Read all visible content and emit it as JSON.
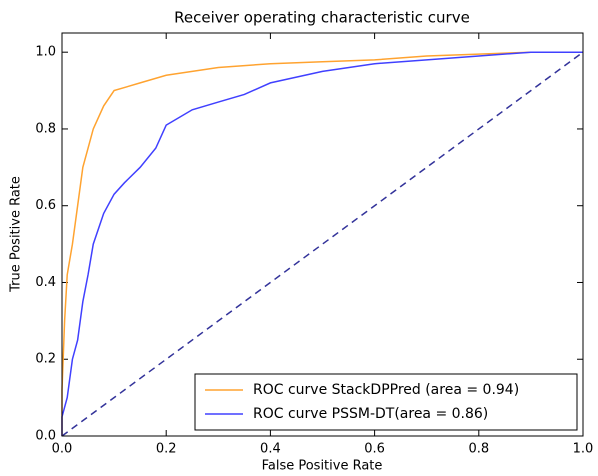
{
  "chart_data": {
    "type": "line",
    "title": "Receiver operating characteristic curve",
    "x_label": "False Positive Rate",
    "y_label": "True Positive Rate",
    "xlim": [
      0,
      1
    ],
    "ylim": [
      0,
      1.05
    ],
    "xticks": [
      {
        "value": 0,
        "label": "0.0"
      },
      {
        "value": 0.2,
        "label": "0.2"
      },
      {
        "value": 0.4,
        "label": "0.4"
      },
      {
        "value": 0.6,
        "label": "0.6"
      },
      {
        "value": 0.8,
        "label": "0.8"
      },
      {
        "value": 1,
        "label": "1.0"
      }
    ],
    "yticks": [
      {
        "value": 0,
        "label": "0.0"
      },
      {
        "value": 0.2,
        "label": "0.2"
      },
      {
        "value": 0.4,
        "label": "0.4"
      },
      {
        "value": 0.6,
        "label": "0.6"
      },
      {
        "value": 0.8,
        "label": "0.8"
      },
      {
        "value": 1,
        "label": "1.0"
      }
    ],
    "legend": "lower right",
    "series": [
      {
        "name": "ROC curve StackDPPred (area = 0.94)",
        "color": "#ffa330",
        "x": [
          0,
          0,
          0.005,
          0.01,
          0.02,
          0.03,
          0.04,
          0.05,
          0.06,
          0.08,
          0.1,
          0.15,
          0.2,
          0.3,
          0.4,
          0.5,
          0.6,
          0.7,
          0.8,
          0.9,
          1.0
        ],
        "values": [
          0,
          0.12,
          0.3,
          0.42,
          0.5,
          0.6,
          0.7,
          0.75,
          0.8,
          0.86,
          0.9,
          0.92,
          0.94,
          0.96,
          0.97,
          0.975,
          0.98,
          0.99,
          0.995,
          1.0,
          1.0
        ]
      },
      {
        "name": "ROC curve PSSM-DT(area = 0.86)",
        "color": "#4040ff",
        "x": [
          0,
          0,
          0.01,
          0.02,
          0.03,
          0.04,
          0.05,
          0.06,
          0.08,
          0.1,
          0.12,
          0.15,
          0.18,
          0.2,
          0.25,
          0.3,
          0.35,
          0.4,
          0.5,
          0.6,
          0.7,
          0.8,
          0.9,
          1.0
        ],
        "values": [
          0,
          0.05,
          0.1,
          0.2,
          0.25,
          0.35,
          0.42,
          0.5,
          0.58,
          0.63,
          0.66,
          0.7,
          0.75,
          0.81,
          0.85,
          0.87,
          0.89,
          0.92,
          0.95,
          0.97,
          0.98,
          0.99,
          1.0,
          1.0
        ]
      }
    ]
  }
}
